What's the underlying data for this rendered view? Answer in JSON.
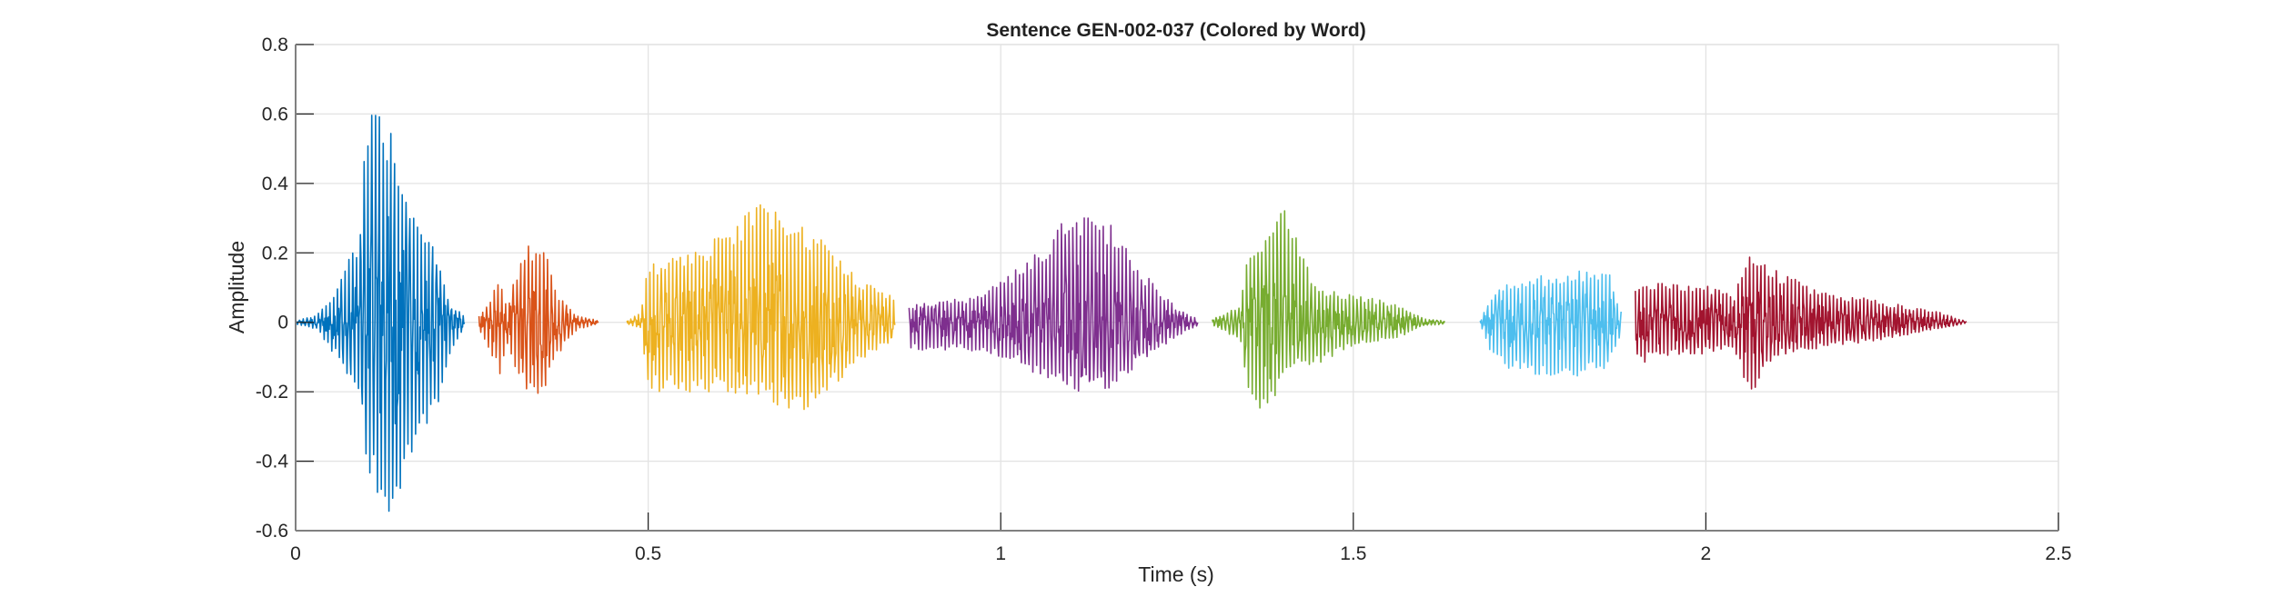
{
  "chart_data": {
    "type": "line",
    "title": "Sentence GEN-002-037 (Colored by Word)",
    "xlabel": "Time (s)",
    "ylabel": "Amplitude",
    "xlim": [
      0,
      2.5
    ],
    "ylim": [
      -0.6,
      0.8
    ],
    "xticks": [
      0,
      0.5,
      1,
      1.5,
      2,
      2.5
    ],
    "xtick_labels": [
      "0",
      "0.5",
      "1",
      "1.5",
      "2",
      "2.5"
    ],
    "yticks": [
      -0.6,
      -0.4,
      -0.2,
      0,
      0.2,
      0.4,
      0.6,
      0.8
    ],
    "ytick_labels": [
      "-0.6",
      "-0.4",
      "-0.2",
      "0",
      "0.2",
      "0.4",
      "0.6",
      "0.8"
    ],
    "grid": true,
    "legend": "none",
    "segments": [
      {
        "color": "#0072BD",
        "start": 0.0,
        "end": 0.24,
        "envelope": [
          [
            0,
            0.005,
            -0.005
          ],
          [
            0.03,
            0.02,
            -0.02
          ],
          [
            0.05,
            0.07,
            -0.08
          ],
          [
            0.09,
            0.25,
            -0.2
          ],
          [
            0.1,
            0.68,
            -0.4
          ],
          [
            0.12,
            0.64,
            -0.6
          ],
          [
            0.14,
            0.55,
            -0.58
          ],
          [
            0.17,
            0.3,
            -0.35
          ],
          [
            0.2,
            0.2,
            -0.25
          ],
          [
            0.22,
            0.05,
            -0.08
          ],
          [
            0.24,
            0.02,
            -0.02
          ]
        ]
      },
      {
        "color": "#D95319",
        "start": 0.26,
        "end": 0.43,
        "envelope": [
          [
            0.26,
            0.02,
            -0.02
          ],
          [
            0.29,
            0.12,
            -0.15
          ],
          [
            0.3,
            0.05,
            -0.06
          ],
          [
            0.32,
            0.2,
            -0.18
          ],
          [
            0.35,
            0.26,
            -0.24
          ],
          [
            0.37,
            0.08,
            -0.1
          ],
          [
            0.4,
            0.02,
            -0.02
          ],
          [
            0.43,
            0.005,
            -0.005
          ]
        ]
      },
      {
        "color": "#EDB120",
        "start": 0.47,
        "end": 0.85,
        "envelope": [
          [
            0.47,
            0.005,
            -0.005
          ],
          [
            0.49,
            0.03,
            -0.02
          ],
          [
            0.5,
            0.17,
            -0.2
          ],
          [
            0.55,
            0.2,
            -0.2
          ],
          [
            0.6,
            0.25,
            -0.2
          ],
          [
            0.66,
            0.35,
            -0.22
          ],
          [
            0.7,
            0.3,
            -0.28
          ],
          [
            0.75,
            0.25,
            -0.22
          ],
          [
            0.8,
            0.12,
            -0.12
          ],
          [
            0.85,
            0.08,
            -0.05
          ]
        ]
      },
      {
        "color": "#7E2F8E",
        "start": 0.87,
        "end": 1.28,
        "envelope": [
          [
            0.87,
            0.05,
            -0.08
          ],
          [
            0.95,
            0.07,
            -0.08
          ],
          [
            1.0,
            0.12,
            -0.1
          ],
          [
            1.05,
            0.2,
            -0.15
          ],
          [
            1.1,
            0.33,
            -0.2
          ],
          [
            1.15,
            0.3,
            -0.2
          ],
          [
            1.2,
            0.15,
            -0.12
          ],
          [
            1.25,
            0.04,
            -0.04
          ],
          [
            1.28,
            0.01,
            -0.01
          ]
        ]
      },
      {
        "color": "#77AC30",
        "start": 1.3,
        "end": 1.63,
        "envelope": [
          [
            1.3,
            0.01,
            -0.01
          ],
          [
            1.34,
            0.05,
            -0.05
          ],
          [
            1.35,
            0.2,
            -0.2
          ],
          [
            1.38,
            0.3,
            -0.28
          ],
          [
            1.4,
            0.35,
            -0.15
          ],
          [
            1.45,
            0.1,
            -0.12
          ],
          [
            1.5,
            0.08,
            -0.07
          ],
          [
            1.57,
            0.05,
            -0.04
          ],
          [
            1.6,
            0.01,
            -0.01
          ],
          [
            1.63,
            0.005,
            -0.005
          ]
        ]
      },
      {
        "color": "#4DBEEE",
        "start": 1.68,
        "end": 1.88,
        "envelope": [
          [
            1.68,
            0.005,
            -0.005
          ],
          [
            1.7,
            0.1,
            -0.12
          ],
          [
            1.75,
            0.13,
            -0.15
          ],
          [
            1.82,
            0.15,
            -0.16
          ],
          [
            1.86,
            0.16,
            -0.14
          ],
          [
            1.88,
            0.03,
            -0.03
          ]
        ]
      },
      {
        "color": "#A2142F",
        "start": 1.9,
        "end": 2.37,
        "envelope": [
          [
            1.9,
            0.1,
            -0.12
          ],
          [
            1.95,
            0.12,
            -0.1
          ],
          [
            2.0,
            0.11,
            -0.09
          ],
          [
            2.04,
            0.08,
            -0.08
          ],
          [
            2.06,
            0.19,
            -0.22
          ],
          [
            2.1,
            0.15,
            -0.1
          ],
          [
            2.15,
            0.1,
            -0.08
          ],
          [
            2.25,
            0.06,
            -0.05
          ],
          [
            2.33,
            0.03,
            -0.02
          ],
          [
            2.37,
            0.002,
            -0.002
          ]
        ]
      }
    ]
  }
}
